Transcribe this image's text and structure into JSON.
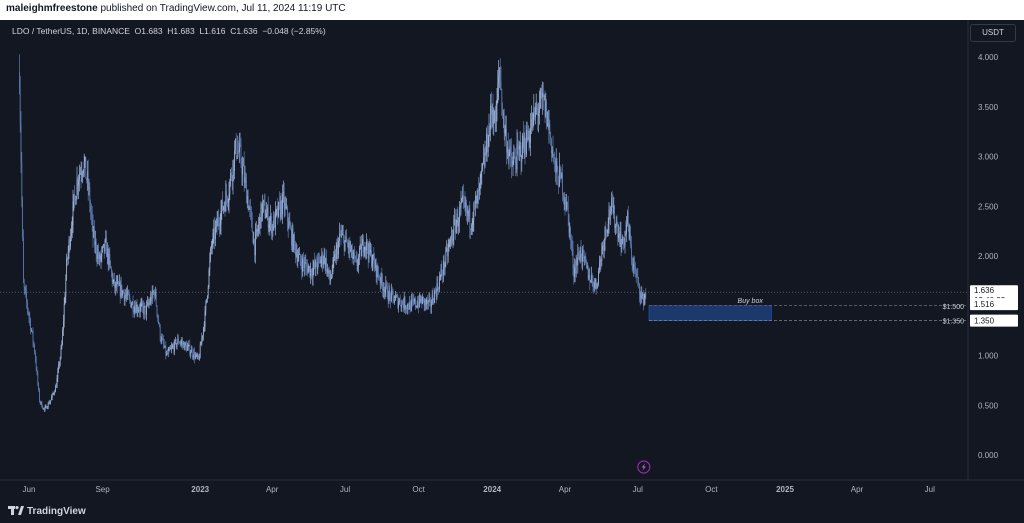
{
  "header": {
    "author": "maleighmfreestone",
    "published_text": "published on TradingView.com, Jul 11, 2024 11:19 UTC"
  },
  "legend": {
    "symbol": "LDO / TetherUS, 1D, BINANCE",
    "open": "O1.683",
    "high": "H1.683",
    "low": "L1.616",
    "close": "C1.636",
    "change": "−0.048 (−2.85%)"
  },
  "currency_button": "USDT",
  "footer": {
    "brand": "TradingView"
  },
  "colors": {
    "background": "#131722",
    "candle": "#9db2d6",
    "buy_box": "#1e3f7a",
    "axis_text": "#b2b5be"
  },
  "chart_data": {
    "type": "candlestick",
    "symbol": "LDO / TetherUS",
    "interval": "1D",
    "exchange": "BINANCE",
    "y_axis": {
      "ticks": [
        "4.000",
        "3.500",
        "3.000",
        "2.500",
        "2.000",
        "1.000",
        "0.500",
        "0.000"
      ],
      "tick_values": [
        4.0,
        3.5,
        3.0,
        2.5,
        2.0,
        1.0,
        0.5,
        0.0
      ],
      "range": [
        -0.2,
        4.3
      ]
    },
    "x_axis": {
      "labels": [
        "Jun",
        "Sep",
        "2023",
        "Apr",
        "Jul",
        "Oct",
        "2024",
        "Apr",
        "Jul",
        "Oct",
        "2025",
        "Apr",
        "Jul"
      ],
      "bold": [
        "2023",
        "2024",
        "2025"
      ],
      "dates": [
        "2022-06-01",
        "2022-09-01",
        "2023-01-01",
        "2023-04-01",
        "2023-07-01",
        "2023-10-01",
        "2024-01-01",
        "2024-04-01",
        "2024-07-01",
        "2024-10-01",
        "2025-01-01",
        "2025-04-01",
        "2025-07-01"
      ]
    },
    "last_price": {
      "value": "1.636",
      "countdown": "12:40:32"
    },
    "price_labels": [
      {
        "value": "1.516",
        "price": 1.516
      },
      {
        "value": "1.350",
        "price": 1.35
      }
    ],
    "buy_box": {
      "label": "Buy box",
      "upper_label": "$1.500",
      "lower_label": "$1.350",
      "upper": 1.5,
      "lower": 1.35,
      "start": "2024-07-15",
      "end": "2024-12-15"
    },
    "series": [
      {
        "date": "2022-05-20",
        "value": 3.85
      },
      {
        "date": "2022-05-25",
        "value": 1.7
      },
      {
        "date": "2022-06-01",
        "value": 1.4
      },
      {
        "date": "2022-06-08",
        "value": 1.05
      },
      {
        "date": "2022-06-14",
        "value": 0.55
      },
      {
        "date": "2022-06-20",
        "value": 0.45
      },
      {
        "date": "2022-06-28",
        "value": 0.55
      },
      {
        "date": "2022-07-05",
        "value": 0.7
      },
      {
        "date": "2022-07-12",
        "value": 1.1
      },
      {
        "date": "2022-07-18",
        "value": 1.9
      },
      {
        "date": "2022-07-25",
        "value": 2.4
      },
      {
        "date": "2022-08-01",
        "value": 2.8
      },
      {
        "date": "2022-08-08",
        "value": 2.95
      },
      {
        "date": "2022-08-14",
        "value": 2.7
      },
      {
        "date": "2022-08-20",
        "value": 2.2
      },
      {
        "date": "2022-08-28",
        "value": 1.95
      },
      {
        "date": "2022-09-05",
        "value": 2.1
      },
      {
        "date": "2022-09-15",
        "value": 1.7
      },
      {
        "date": "2022-09-25",
        "value": 1.65
      },
      {
        "date": "2022-10-10",
        "value": 1.5
      },
      {
        "date": "2022-10-25",
        "value": 1.45
      },
      {
        "date": "2022-11-05",
        "value": 1.65
      },
      {
        "date": "2022-11-12",
        "value": 1.2
      },
      {
        "date": "2022-11-20",
        "value": 1.0
      },
      {
        "date": "2022-12-05",
        "value": 1.15
      },
      {
        "date": "2022-12-20",
        "value": 1.05
      },
      {
        "date": "2022-12-30",
        "value": 0.95
      },
      {
        "date": "2023-01-07",
        "value": 1.4
      },
      {
        "date": "2023-01-15",
        "value": 2.1
      },
      {
        "date": "2023-01-25",
        "value": 2.4
      },
      {
        "date": "2023-02-05",
        "value": 2.65
      },
      {
        "date": "2023-02-15",
        "value": 3.1
      },
      {
        "date": "2023-02-20",
        "value": 3.0
      },
      {
        "date": "2023-03-01",
        "value": 2.6
      },
      {
        "date": "2023-03-10",
        "value": 2.1
      },
      {
        "date": "2023-03-20",
        "value": 2.5
      },
      {
        "date": "2023-04-01",
        "value": 2.3
      },
      {
        "date": "2023-04-15",
        "value": 2.55
      },
      {
        "date": "2023-04-25",
        "value": 2.2
      },
      {
        "date": "2023-05-05",
        "value": 1.95
      },
      {
        "date": "2023-05-20",
        "value": 1.85
      },
      {
        "date": "2023-06-05",
        "value": 2.0
      },
      {
        "date": "2023-06-12",
        "value": 1.75
      },
      {
        "date": "2023-06-25",
        "value": 2.2
      },
      {
        "date": "2023-07-05",
        "value": 2.1
      },
      {
        "date": "2023-07-15",
        "value": 1.9
      },
      {
        "date": "2023-07-25",
        "value": 2.15
      },
      {
        "date": "2023-08-05",
        "value": 1.95
      },
      {
        "date": "2023-08-15",
        "value": 1.75
      },
      {
        "date": "2023-08-25",
        "value": 1.6
      },
      {
        "date": "2023-09-05",
        "value": 1.55
      },
      {
        "date": "2023-09-20",
        "value": 1.5
      },
      {
        "date": "2023-10-05",
        "value": 1.55
      },
      {
        "date": "2023-10-15",
        "value": 1.5
      },
      {
        "date": "2023-10-25",
        "value": 1.7
      },
      {
        "date": "2023-11-05",
        "value": 2.0
      },
      {
        "date": "2023-11-15",
        "value": 2.3
      },
      {
        "date": "2023-11-25",
        "value": 2.5
      },
      {
        "date": "2023-12-05",
        "value": 2.35
      },
      {
        "date": "2023-12-15",
        "value": 2.6
      },
      {
        "date": "2023-12-25",
        "value": 3.1
      },
      {
        "date": "2024-01-01",
        "value": 3.5
      },
      {
        "date": "2024-01-05",
        "value": 3.3
      },
      {
        "date": "2024-01-10",
        "value": 3.9
      },
      {
        "date": "2024-01-15",
        "value": 3.35
      },
      {
        "date": "2024-01-25",
        "value": 2.9
      },
      {
        "date": "2024-02-05",
        "value": 3.05
      },
      {
        "date": "2024-02-15",
        "value": 3.2
      },
      {
        "date": "2024-02-25",
        "value": 3.45
      },
      {
        "date": "2024-03-05",
        "value": 3.55
      },
      {
        "date": "2024-03-12",
        "value": 3.3
      },
      {
        "date": "2024-03-20",
        "value": 2.85
      },
      {
        "date": "2024-03-28",
        "value": 2.75
      },
      {
        "date": "2024-04-05",
        "value": 2.4
      },
      {
        "date": "2024-04-12",
        "value": 1.85
      },
      {
        "date": "2024-04-20",
        "value": 2.05
      },
      {
        "date": "2024-05-01",
        "value": 1.8
      },
      {
        "date": "2024-05-10",
        "value": 1.7
      },
      {
        "date": "2024-05-20",
        "value": 2.2
      },
      {
        "date": "2024-05-28",
        "value": 2.5
      },
      {
        "date": "2024-06-05",
        "value": 2.3
      },
      {
        "date": "2024-06-12",
        "value": 2.1
      },
      {
        "date": "2024-06-18",
        "value": 2.35
      },
      {
        "date": "2024-06-24",
        "value": 1.95
      },
      {
        "date": "2024-07-02",
        "value": 1.7
      },
      {
        "date": "2024-07-07",
        "value": 1.55
      },
      {
        "date": "2024-07-11",
        "value": 1.636
      }
    ]
  }
}
